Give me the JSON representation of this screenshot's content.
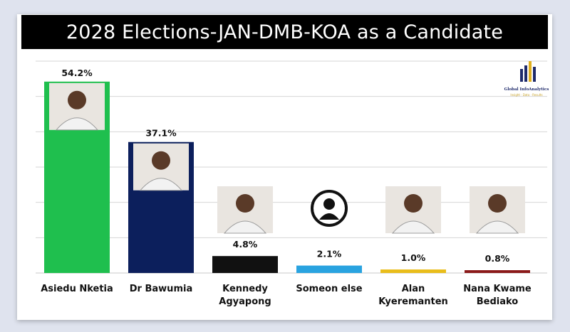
{
  "title": "2028 Elections-JAN-DMB-KOA as a Candidate",
  "logo": {
    "name": "Global InfoAnalytics",
    "tagline": "Insight · Data · Results",
    "color": "#1e2a6b"
  },
  "chart_data": {
    "type": "bar",
    "title": "2028 Elections-JAN-DMB-KOA as a Candidate",
    "xlabel": "",
    "ylabel": "",
    "ylim": [
      0,
      60
    ],
    "grid": true,
    "categories": [
      [
        "Asiedu Nketia"
      ],
      [
        "Dr Bawumia"
      ],
      [
        "Kennedy",
        "Agyapong"
      ],
      [
        "Someon else"
      ],
      [
        "Alan",
        "Kyeremanten"
      ],
      [
        "Nana Kwame",
        "Bediako"
      ]
    ],
    "values": [
      54.2,
      37.1,
      4.8,
      2.1,
      1.0,
      0.8
    ],
    "value_labels": [
      "54.2%",
      "37.1%",
      "4.8%",
      "2.1%",
      "1.0%",
      "0.8%"
    ],
    "colors": [
      "#1fbf4e",
      "#0c1f5c",
      "#111111",
      "#29a3e0",
      "#e9bd1a",
      "#8b1a1a"
    ],
    "photos": [
      "portrait",
      "portrait",
      "portrait",
      "placeholder-person-icon",
      "portrait",
      "portrait"
    ]
  }
}
